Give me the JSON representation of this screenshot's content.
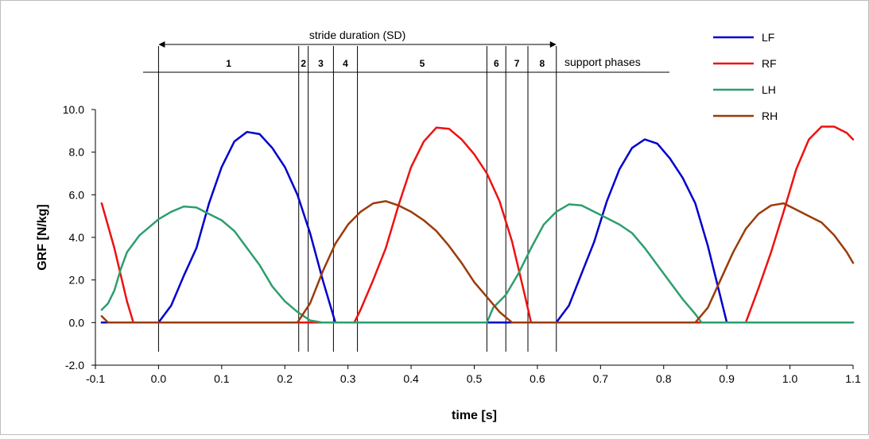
{
  "chart_data": {
    "type": "line",
    "xlabel": "time [s]",
    "ylabel": "GRF [N/kg]",
    "xlim": [
      -0.1,
      1.1
    ],
    "ylim": [
      -2.0,
      10.0
    ],
    "x_ticks": [
      "-0.1",
      "0.0",
      "0.1",
      "0.2",
      "0.3",
      "0.4",
      "0.5",
      "0.6",
      "0.7",
      "0.8",
      "0.9",
      "1.0",
      "1.1"
    ],
    "y_ticks": [
      "-2.0",
      "0.0",
      "2.0",
      "4.0",
      "6.0",
      "8.0",
      "10.0"
    ],
    "grid": false,
    "legend_position": "top-right",
    "annotations": {
      "stride_label": "stride duration (SD)",
      "stride_range": [
        0.0,
        0.63
      ],
      "support_label": "support phases",
      "phase_boundaries": [
        0.0,
        0.222,
        0.237,
        0.277,
        0.315,
        0.52,
        0.55,
        0.585,
        0.63
      ],
      "phase_labels": [
        "1",
        "2",
        "3",
        "4",
        "5",
        "6",
        "7",
        "8"
      ]
    },
    "series": [
      {
        "name": "LF",
        "color": "#0000cc",
        "points": [
          [
            -0.09,
            0.0
          ],
          [
            0.0,
            0.0
          ],
          [
            0.02,
            0.8
          ],
          [
            0.04,
            2.2
          ],
          [
            0.06,
            3.5
          ],
          [
            0.08,
            5.6
          ],
          [
            0.1,
            7.3
          ],
          [
            0.12,
            8.5
          ],
          [
            0.14,
            8.95
          ],
          [
            0.16,
            8.85
          ],
          [
            0.18,
            8.2
          ],
          [
            0.2,
            7.3
          ],
          [
            0.22,
            6.0
          ],
          [
            0.24,
            4.2
          ],
          [
            0.26,
            2.0
          ],
          [
            0.28,
            0.0
          ],
          [
            0.52,
            0.0
          ],
          [
            0.63,
            0.0
          ],
          [
            0.65,
            0.8
          ],
          [
            0.67,
            2.3
          ],
          [
            0.69,
            3.8
          ],
          [
            0.71,
            5.7
          ],
          [
            0.73,
            7.2
          ],
          [
            0.75,
            8.2
          ],
          [
            0.77,
            8.6
          ],
          [
            0.79,
            8.4
          ],
          [
            0.81,
            7.7
          ],
          [
            0.83,
            6.8
          ],
          [
            0.85,
            5.6
          ],
          [
            0.87,
            3.6
          ],
          [
            0.89,
            1.2
          ],
          [
            0.9,
            0.0
          ],
          [
            1.1,
            0.0
          ]
        ]
      },
      {
        "name": "RF",
        "color": "#ee1111",
        "points": [
          [
            -0.09,
            5.6
          ],
          [
            -0.07,
            3.5
          ],
          [
            -0.05,
            1.0
          ],
          [
            -0.04,
            0.0
          ],
          [
            0.31,
            0.0
          ],
          [
            0.32,
            0.6
          ],
          [
            0.34,
            2.0
          ],
          [
            0.36,
            3.5
          ],
          [
            0.38,
            5.5
          ],
          [
            0.4,
            7.3
          ],
          [
            0.42,
            8.5
          ],
          [
            0.44,
            9.15
          ],
          [
            0.46,
            9.1
          ],
          [
            0.48,
            8.6
          ],
          [
            0.5,
            7.9
          ],
          [
            0.52,
            7.0
          ],
          [
            0.54,
            5.7
          ],
          [
            0.56,
            3.8
          ],
          [
            0.58,
            1.3
          ],
          [
            0.59,
            0.0
          ],
          [
            0.93,
            0.0
          ],
          [
            0.95,
            1.6
          ],
          [
            0.97,
            3.3
          ],
          [
            0.99,
            5.2
          ],
          [
            1.01,
            7.2
          ],
          [
            1.03,
            8.6
          ],
          [
            1.05,
            9.2
          ],
          [
            1.07,
            9.2
          ],
          [
            1.09,
            8.9
          ],
          [
            1.1,
            8.6
          ]
        ]
      },
      {
        "name": "LH",
        "color": "#2e9e6e",
        "points": [
          [
            -0.09,
            0.6
          ],
          [
            -0.08,
            0.9
          ],
          [
            -0.07,
            1.5
          ],
          [
            -0.06,
            2.5
          ],
          [
            -0.05,
            3.3
          ],
          [
            -0.03,
            4.1
          ],
          [
            -0.01,
            4.6
          ],
          [
            0.0,
            4.85
          ],
          [
            0.02,
            5.2
          ],
          [
            0.04,
            5.45
          ],
          [
            0.06,
            5.4
          ],
          [
            0.08,
            5.1
          ],
          [
            0.1,
            4.8
          ],
          [
            0.12,
            4.3
          ],
          [
            0.14,
            3.5
          ],
          [
            0.16,
            2.7
          ],
          [
            0.18,
            1.7
          ],
          [
            0.2,
            1.0
          ],
          [
            0.22,
            0.5
          ],
          [
            0.24,
            0.1
          ],
          [
            0.26,
            0.0
          ],
          [
            0.52,
            0.0
          ],
          [
            0.53,
            0.7
          ],
          [
            0.55,
            1.3
          ],
          [
            0.57,
            2.3
          ],
          [
            0.59,
            3.5
          ],
          [
            0.61,
            4.6
          ],
          [
            0.63,
            5.2
          ],
          [
            0.65,
            5.55
          ],
          [
            0.67,
            5.5
          ],
          [
            0.69,
            5.2
          ],
          [
            0.71,
            4.9
          ],
          [
            0.73,
            4.6
          ],
          [
            0.75,
            4.2
          ],
          [
            0.77,
            3.5
          ],
          [
            0.79,
            2.7
          ],
          [
            0.81,
            1.9
          ],
          [
            0.83,
            1.1
          ],
          [
            0.85,
            0.4
          ],
          [
            0.86,
            0.0
          ],
          [
            1.1,
            0.0
          ]
        ]
      },
      {
        "name": "RH",
        "color": "#9a3c0a",
        "points": [
          [
            -0.09,
            0.3
          ],
          [
            -0.08,
            0.0
          ],
          [
            0.22,
            0.0
          ],
          [
            0.24,
            0.9
          ],
          [
            0.26,
            2.4
          ],
          [
            0.28,
            3.7
          ],
          [
            0.3,
            4.6
          ],
          [
            0.32,
            5.2
          ],
          [
            0.34,
            5.6
          ],
          [
            0.36,
            5.7
          ],
          [
            0.38,
            5.5
          ],
          [
            0.4,
            5.2
          ],
          [
            0.42,
            4.8
          ],
          [
            0.44,
            4.3
          ],
          [
            0.46,
            3.6
          ],
          [
            0.48,
            2.8
          ],
          [
            0.5,
            1.9
          ],
          [
            0.52,
            1.2
          ],
          [
            0.54,
            0.5
          ],
          [
            0.56,
            0.0
          ],
          [
            0.85,
            0.0
          ],
          [
            0.87,
            0.7
          ],
          [
            0.89,
            2.0
          ],
          [
            0.91,
            3.3
          ],
          [
            0.93,
            4.4
          ],
          [
            0.95,
            5.1
          ],
          [
            0.97,
            5.5
          ],
          [
            0.99,
            5.6
          ],
          [
            1.01,
            5.3
          ],
          [
            1.03,
            5.0
          ],
          [
            1.05,
            4.7
          ],
          [
            1.07,
            4.1
          ],
          [
            1.09,
            3.3
          ],
          [
            1.1,
            2.8
          ]
        ]
      }
    ]
  }
}
